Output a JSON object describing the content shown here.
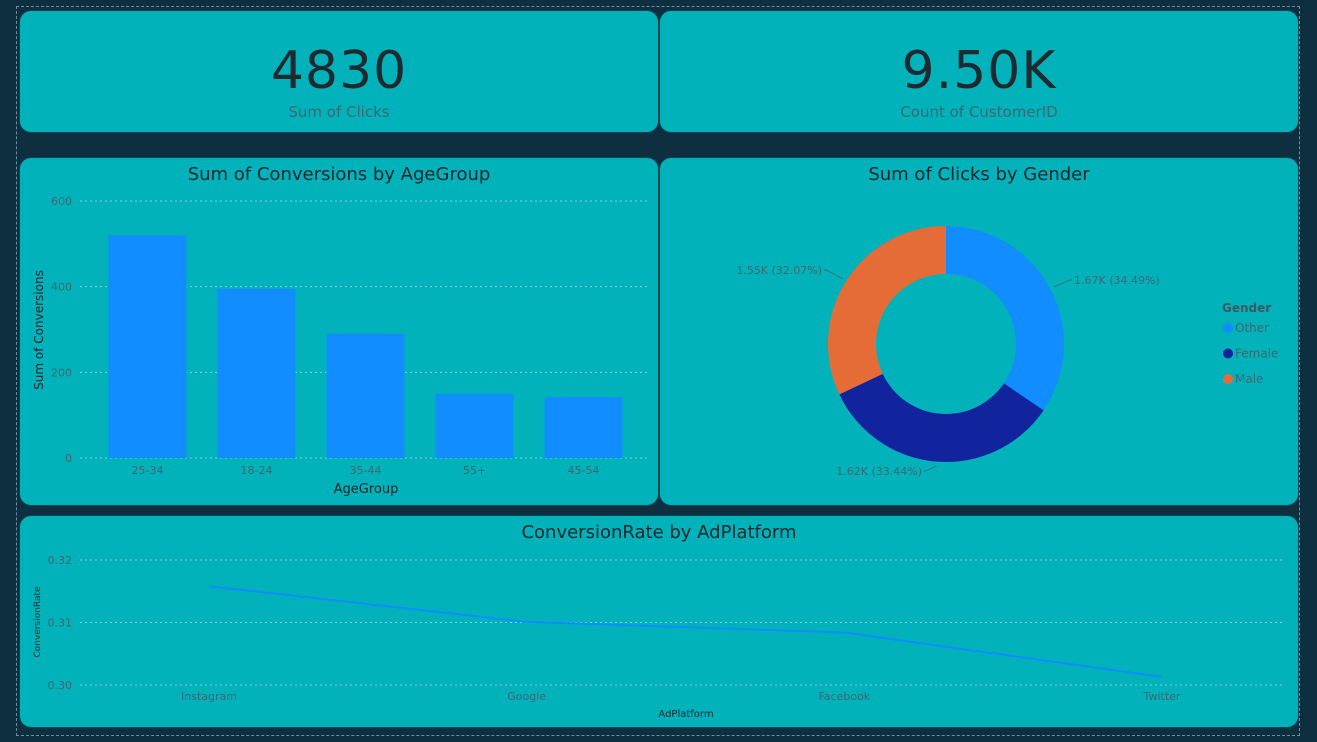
{
  "kpis": [
    {
      "value": "4830",
      "label": "Sum of Clicks"
    },
    {
      "value": "9.50K",
      "label": "Count of CustomerID"
    }
  ],
  "colors": {
    "background": "#0e2f3f",
    "card": "#02b2bb",
    "bar": "#118dff",
    "other": "#118dff",
    "female": "#12239e",
    "male": "#e66c37",
    "line": "#118dff"
  },
  "chart_data": [
    {
      "type": "bar",
      "title": "Sum of Conversions by AgeGroup",
      "xlabel": "AgeGroup",
      "ylabel": "Sum of Conversions",
      "categories": [
        "25-34",
        "18-24",
        "35-44",
        "55+",
        "45-54"
      ],
      "values": [
        520,
        395,
        290,
        150,
        142
      ],
      "yticks": [
        "0",
        "200",
        "400",
        "600"
      ],
      "ylim": [
        0,
        600
      ],
      "grid": true
    },
    {
      "type": "pie",
      "variant": "donut",
      "title": "Sum of Clicks by Gender",
      "legend_title": "Gender",
      "legend_position": "right",
      "categories": [
        "Other",
        "Female",
        "Male"
      ],
      "values": [
        1670,
        1620,
        1550
      ],
      "data_labels": [
        "1.67K (34.49%)",
        "1.62K (33.44%)",
        "1.55K (32.07%)"
      ]
    },
    {
      "type": "line",
      "title": "ConversionRate by AdPlatform",
      "xlabel": "AdPlatform",
      "ylabel": "ConversionRate",
      "categories": [
        "Instagram",
        "Google",
        "Facebook",
        "Twitter"
      ],
      "values": [
        0.3158,
        0.3101,
        0.3084,
        0.3013
      ],
      "yticks": [
        "0.30",
        "0.31",
        "0.32"
      ],
      "ylim": [
        0.3,
        0.32
      ],
      "grid": true
    }
  ]
}
